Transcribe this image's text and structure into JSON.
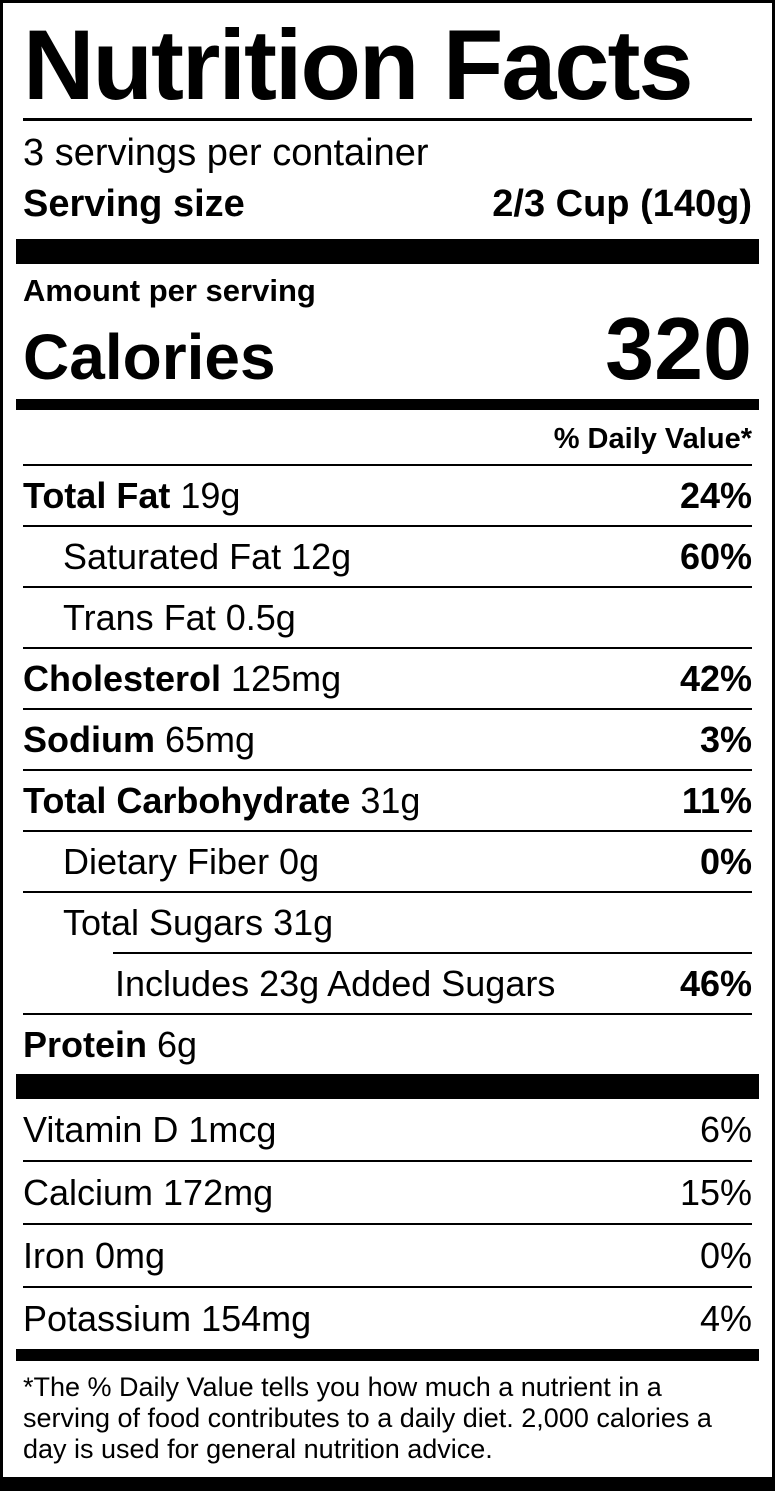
{
  "label": {
    "title": "Nutrition Facts",
    "servings_per_container": "3 servings per container",
    "serving_size": {
      "label": "Serving size",
      "value": "2/3 Cup (140g)"
    },
    "amount_per_serving": "Amount per serving",
    "calories": {
      "label": "Calories",
      "value": "320"
    },
    "daily_value_header": "% Daily Value*",
    "nutrients": [
      {
        "bold": "Total Fat ",
        "rest": "19g",
        "dv": "24%"
      },
      {
        "bold": "",
        "rest": "Saturated Fat 12g",
        "dv": "60%"
      },
      {
        "bold": "",
        "rest": "Trans Fat 0.5g",
        "dv": ""
      },
      {
        "bold": "Cholesterol ",
        "rest": "125mg",
        "dv": "42%"
      },
      {
        "bold": "Sodium ",
        "rest": "65mg",
        "dv": "3%"
      },
      {
        "bold": "Total Carbohydrate ",
        "rest": "31g",
        "dv": "11%"
      },
      {
        "bold": "",
        "rest": "Dietary Fiber 0g",
        "dv": "0%"
      },
      {
        "bold": "",
        "rest": "Total Sugars 31g",
        "dv": ""
      },
      {
        "bold": "",
        "rest": "Includes 23g Added Sugars",
        "dv": "46%"
      },
      {
        "bold": "Protein ",
        "rest": "6g",
        "dv": ""
      }
    ],
    "micronutrients": [
      {
        "label": "Vitamin D 1mcg",
        "dv": "6%"
      },
      {
        "label": "Calcium 172mg",
        "dv": "15%"
      },
      {
        "label": "Iron 0mg",
        "dv": "0%"
      },
      {
        "label": "Potassium 154mg",
        "dv": "4%"
      }
    ],
    "footnote": "*The % Daily Value tells you how much a nutrient in a serving of food contributes to a daily diet. 2,000 calories a day is used for general nutrition advice.",
    "colors": {
      "text": "#000000",
      "background": "#ffffff"
    }
  }
}
